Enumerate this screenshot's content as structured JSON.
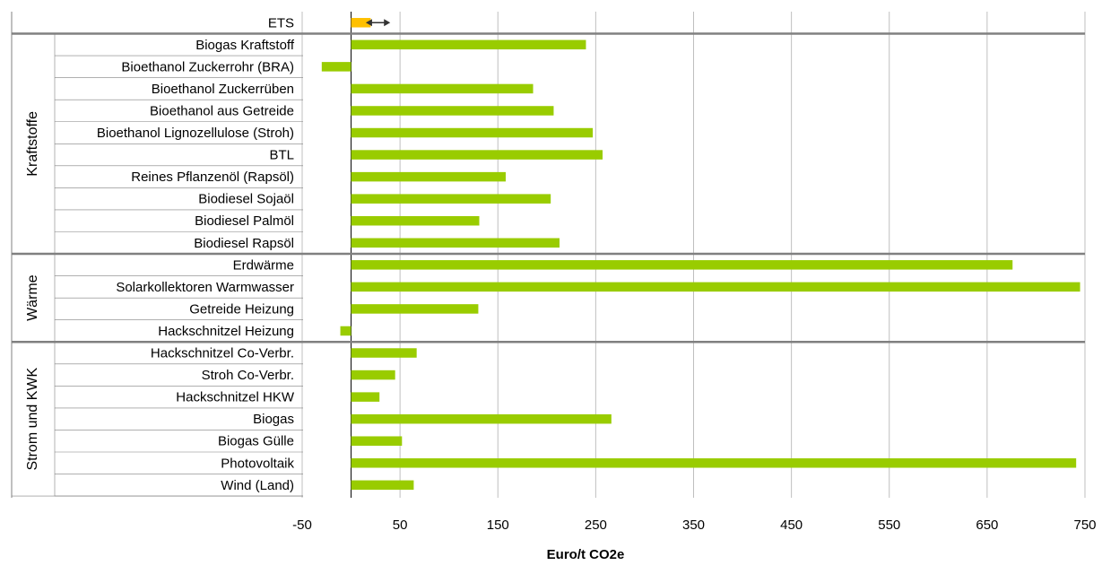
{
  "chart_data": {
    "type": "bar",
    "orientation": "horizontal",
    "xlabel": "Euro/t CO2e",
    "xlim": [
      -50,
      750
    ],
    "xticks": [
      -50,
      50,
      150,
      250,
      350,
      450,
      550,
      650,
      750
    ],
    "grid": true,
    "colors": {
      "bar": "#99cc00",
      "ets_bar": "#ffc000",
      "separator": "#808080",
      "gridline": "#bfbfbf"
    },
    "ets": {
      "label": "ETS",
      "value_range": [
        0,
        20
      ],
      "arrow_range": [
        15,
        40
      ]
    },
    "groups": [
      {
        "name": "Kraftstoffe",
        "items": [
          {
            "label": "Biogas Kraftstoff",
            "value": 240
          },
          {
            "label": "Bioethanol Zuckerrohr (BRA)",
            "value": -30
          },
          {
            "label": "Bioethanol Zuckerrüben",
            "value": 186
          },
          {
            "label": "Bioethanol aus Getreide",
            "value": 207
          },
          {
            "label": "Bioethanol Lignozellulose (Stroh)",
            "value": 247
          },
          {
            "label": "BTL",
            "value": 257
          },
          {
            "label": "Reines Pflanzenöl (Rapsöl)",
            "value": 158
          },
          {
            "label": "Biodiesel Sojaöl",
            "value": 204
          },
          {
            "label": "Biodiesel Palmöl",
            "value": 131
          },
          {
            "label": "Biodiesel Rapsöl",
            "value": 213
          }
        ]
      },
      {
        "name": "Wärme",
        "items": [
          {
            "label": "Erdwärme",
            "value": 676
          },
          {
            "label": "Solarkollektoren Warmwasser",
            "value": 745
          },
          {
            "label": "Getreide Heizung",
            "value": 130
          },
          {
            "label": "Hackschnitzel Heizung",
            "value": -11
          }
        ]
      },
      {
        "name": "Strom und KWK",
        "items": [
          {
            "label": "Hackschnitzel Co-Verbr.",
            "value": 67
          },
          {
            "label": "Stroh Co-Verbr.",
            "value": 45
          },
          {
            "label": "Hackschnitzel HKW",
            "value": 29
          },
          {
            "label": "Biogas",
            "value": 266
          },
          {
            "label": "Biogas Gülle",
            "value": 52
          },
          {
            "label": "Photovoltaik",
            "value": 741
          },
          {
            "label": "Wind (Land)",
            "value": 64
          }
        ]
      }
    ]
  }
}
